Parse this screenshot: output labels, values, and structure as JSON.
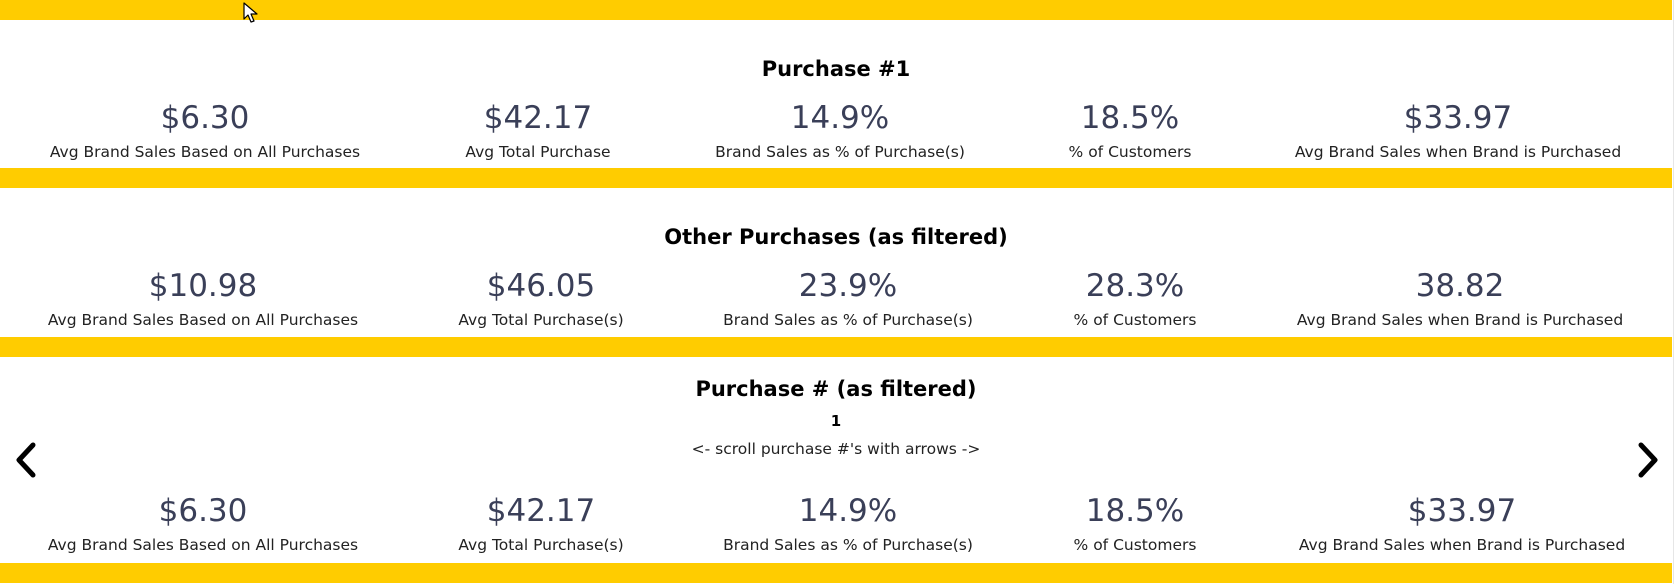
{
  "panels": [
    {
      "title": "Purchase #1",
      "kpis": [
        {
          "value": "$6.30",
          "label": "Avg Brand Sales Based on All Purchases"
        },
        {
          "value": "$42.17",
          "label": "Avg Total Purchase"
        },
        {
          "value": "14.9%",
          "label": "Brand Sales as % of Purchase(s)"
        },
        {
          "value": "18.5%",
          "label": "% of Customers"
        },
        {
          "value": "$33.97",
          "label": "Avg Brand Sales when Brand is Purchased"
        }
      ]
    },
    {
      "title": "Other Purchases (as filtered)",
      "kpis": [
        {
          "value": "$10.98",
          "label": "Avg Brand Sales Based on All Purchases"
        },
        {
          "value": "$46.05",
          "label": "Avg Total Purchase(s)"
        },
        {
          "value": "23.9%",
          "label": "Brand Sales as % of Purchase(s)"
        },
        {
          "value": "28.3%",
          "label": "% of Customers"
        },
        {
          "value": "38.82",
          "label": "Avg Brand Sales when Brand is Purchased"
        }
      ]
    },
    {
      "title": "Purchase # (as filtered)",
      "selected_purchase": "1",
      "hint": "<- scroll purchase #'s with arrows ->",
      "kpis": [
        {
          "value": "$6.30",
          "label": "Avg Brand Sales Based on All Purchases"
        },
        {
          "value": "$42.17",
          "label": "Avg Total Purchase(s)"
        },
        {
          "value": "14.9%",
          "label": "Brand Sales as % of Purchase(s)"
        },
        {
          "value": "18.5%",
          "label": "% of Customers"
        },
        {
          "value": "$33.97",
          "label": "Avg Brand Sales when Brand is Purchased"
        }
      ]
    }
  ],
  "icons": {
    "prev": "chevron-left-icon",
    "next": "chevron-right-icon",
    "cursor": "mouse-pointer-icon"
  },
  "colors": {
    "band": "#ffcc00",
    "kpi_value": "#3a3f58",
    "background": "#ffffff"
  }
}
